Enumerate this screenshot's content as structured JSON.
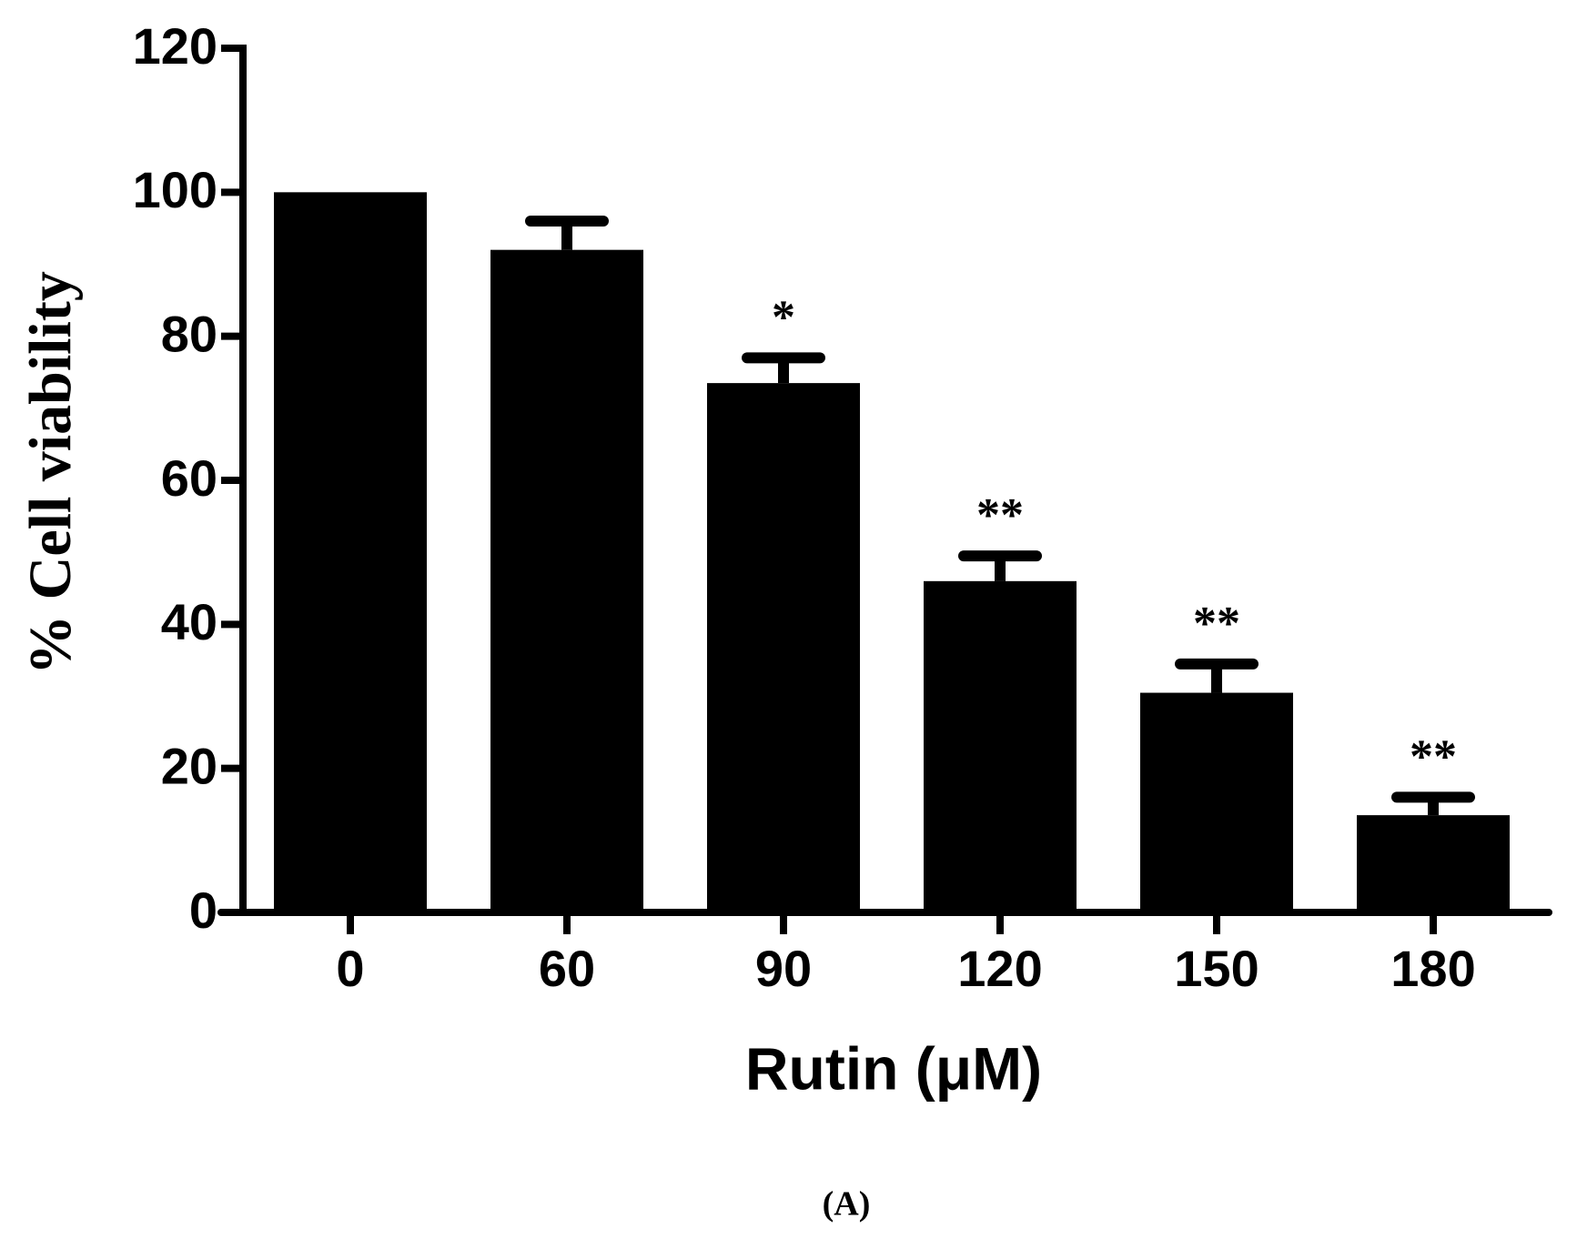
{
  "chart_data": {
    "type": "bar",
    "y_label": "% Cell viability",
    "x_label": "Rutin (μM)",
    "panel_label": "(A)",
    "categories": [
      "0",
      "60",
      "90",
      "120",
      "150",
      "180"
    ],
    "values": [
      100,
      92,
      73.5,
      46,
      30.5,
      13.5
    ],
    "errors": [
      0,
      4,
      3.5,
      3.5,
      4,
      2.5
    ],
    "annotations": [
      null,
      null,
      "*",
      "**",
      "**",
      "**"
    ],
    "color": "#000000",
    "ylim": [
      0,
      120
    ],
    "yticks": [
      0,
      20,
      40,
      60,
      80,
      100,
      120
    ],
    "grid": false
  }
}
